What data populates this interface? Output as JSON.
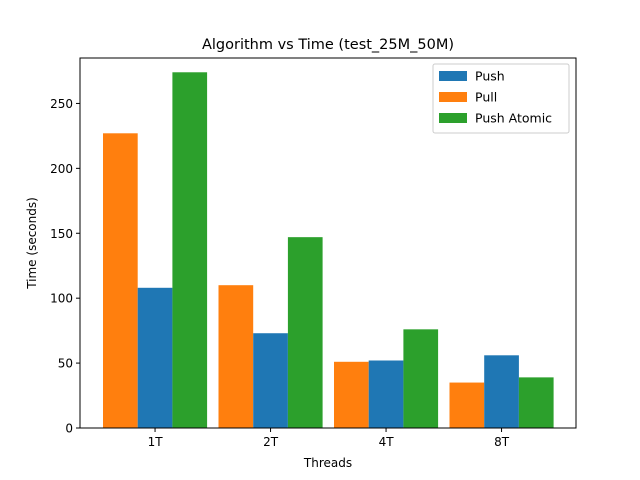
{
  "chart_data": {
    "type": "bar",
    "title": "Algorithm vs Time (test_25M_50M)",
    "xlabel": "Threads",
    "ylabel": "Time (seconds)",
    "categories": [
      "1T",
      "2T",
      "4T",
      "8T"
    ],
    "ylim": [
      0,
      285
    ],
    "yticks": [
      0,
      50,
      100,
      150,
      200,
      250
    ],
    "grid": false,
    "legend_position": "top-right",
    "bar_order": [
      "Pull",
      "Push",
      "Push Atomic"
    ],
    "series": [
      {
        "name": "Push",
        "color": "#1f77b4",
        "values": [
          108,
          73,
          52,
          56
        ]
      },
      {
        "name": "Pull",
        "color": "#ff7f0e",
        "values": [
          227,
          110,
          51,
          35
        ]
      },
      {
        "name": "Push Atomic",
        "color": "#2ca02c",
        "values": [
          274,
          147,
          76,
          39
        ]
      }
    ]
  }
}
